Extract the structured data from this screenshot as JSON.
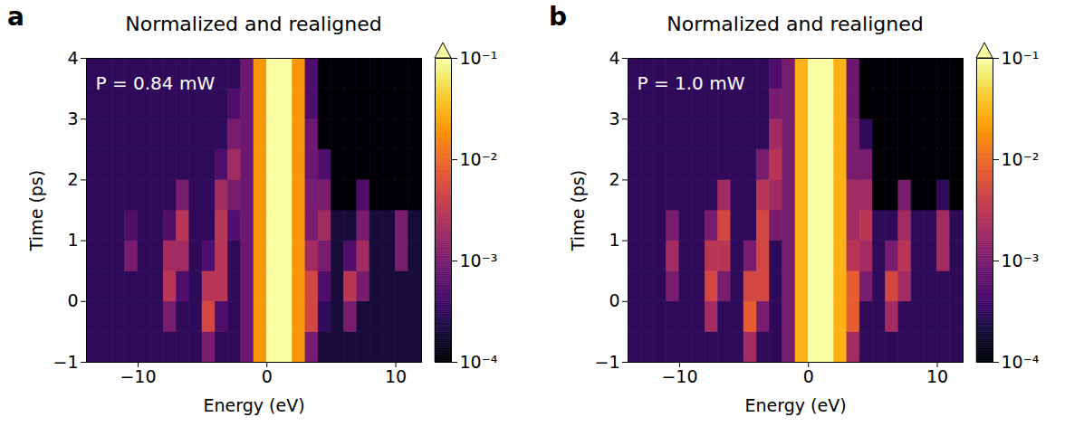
{
  "chart_data": [
    {
      "type": "heatmap",
      "panel": "a",
      "title": "Normalized and realigned",
      "annotation": "P = 0.84 mW",
      "x_label": "Energy (eV)",
      "y_label": "Time (ps)",
      "xlim": [
        -14,
        12
      ],
      "xticks": [
        {
          "value": -10,
          "label": "−10"
        },
        0,
        10
      ],
      "ylim": [
        -1,
        4
      ],
      "yticks": [
        {
          "value": -1,
          "label": "−1"
        },
        0,
        1,
        2,
        3,
        4
      ],
      "energy_bins": [
        -14,
        -13,
        -12,
        -11,
        -10,
        -9,
        -8,
        -7,
        -6,
        -5,
        -4,
        -3,
        -2,
        -1,
        0,
        1,
        2,
        3,
        4,
        5,
        6,
        7,
        8,
        9,
        10,
        11,
        12
      ],
      "time_bins": [
        -1,
        -0.5,
        0,
        0.5,
        1,
        1.5,
        2,
        2.5,
        3,
        3.5,
        4
      ],
      "cells": [
        [
          0.0003,
          0.0003,
          0.0003,
          0.0003,
          0.0003,
          0.0003,
          0.0003,
          0.0003,
          0.0003,
          0.001,
          0.0003,
          0.0003,
          0.0008,
          0.02,
          0.1,
          0.1,
          0.02,
          0.001,
          0.0002,
          0.0002,
          0.0002,
          0.0002,
          0.0002,
          0.0002,
          0.0002,
          0.0002
        ],
        [
          0.0003,
          0.0003,
          0.0003,
          0.0003,
          0.0003,
          0.0003,
          0.001,
          0.0003,
          0.0003,
          0.005,
          0.0005,
          0.0003,
          0.0008,
          0.02,
          0.1,
          0.1,
          0.02,
          0.005,
          0.0003,
          0.0002,
          0.001,
          0.0002,
          0.0002,
          0.0002,
          0.0002,
          0.0002
        ],
        [
          0.0003,
          0.0003,
          0.0003,
          0.0003,
          0.0003,
          0.0003,
          0.003,
          0.0005,
          0.0003,
          0.003,
          0.003,
          0.0003,
          0.0008,
          0.02,
          0.1,
          0.1,
          0.02,
          0.005,
          0.0005,
          0.0002,
          0.003,
          0.001,
          0.0002,
          0.0002,
          0.0002,
          0.0002
        ],
        [
          0.0003,
          0.0003,
          0.0003,
          0.001,
          0.0003,
          0.0003,
          0.002,
          0.002,
          0.0003,
          0.0005,
          0.003,
          0.0003,
          0.0008,
          0.02,
          0.1,
          0.1,
          0.02,
          0.002,
          0.001,
          0.0002,
          0.0005,
          0.002,
          0.0002,
          0.0002,
          0.001,
          0.0002
        ],
        [
          0.0003,
          0.0003,
          0.0003,
          0.0005,
          0.0003,
          0.0003,
          0.0005,
          0.003,
          0.0003,
          0.0003,
          0.003,
          0.0005,
          0.0008,
          0.02,
          0.1,
          0.1,
          0.02,
          0.001,
          0.002,
          0.0002,
          0.0002,
          0.001,
          0.0002,
          0.0002,
          0.001,
          0.0002
        ],
        [
          0.0003,
          0.0003,
          0.0003,
          0.0003,
          0.0003,
          0.0003,
          0.0003,
          0.001,
          0.0003,
          0.0003,
          0.002,
          0.001,
          0.0008,
          0.02,
          0.1,
          0.1,
          0.02,
          0.001,
          0.001,
          0.0001,
          0.0001,
          0.0005,
          0.0001,
          0.0001,
          0.0001,
          0.0001
        ],
        [
          0.0003,
          0.0003,
          0.0003,
          0.0003,
          0.0003,
          0.0003,
          0.0003,
          0.0003,
          0.0003,
          0.0003,
          0.0005,
          0.002,
          0.0008,
          0.02,
          0.1,
          0.1,
          0.02,
          0.0008,
          0.0005,
          0.0001,
          0.0001,
          0.0001,
          0.0001,
          0.0001,
          0.0001,
          0.0001
        ],
        [
          0.0003,
          0.0003,
          0.0003,
          0.0003,
          0.0003,
          0.0003,
          0.0003,
          0.0003,
          0.0003,
          0.0003,
          0.0003,
          0.001,
          0.0008,
          0.02,
          0.1,
          0.1,
          0.02,
          0.0008,
          0.0001,
          0.0001,
          0.0001,
          0.0001,
          0.0001,
          0.0001,
          0.0001,
          0.0001
        ],
        [
          0.0003,
          0.0003,
          0.0003,
          0.0003,
          0.0003,
          0.0003,
          0.0003,
          0.0003,
          0.0003,
          0.0003,
          0.0003,
          0.0005,
          0.0008,
          0.02,
          0.1,
          0.1,
          0.02,
          0.0005,
          0.0001,
          0.0001,
          0.0001,
          0.0001,
          0.0001,
          0.0001,
          0.0001,
          0.0001
        ],
        [
          0.0003,
          0.0003,
          0.0003,
          0.0003,
          0.0003,
          0.0003,
          0.0003,
          0.0003,
          0.0003,
          0.0003,
          0.0003,
          0.0003,
          0.0008,
          0.02,
          0.1,
          0.1,
          0.02,
          0.0005,
          0.0001,
          0.0001,
          0.0001,
          0.0001,
          0.0001,
          0.0001,
          0.0001,
          0.0001
        ]
      ],
      "colorbar": {
        "range": [
          0.0001,
          0.1
        ],
        "log": true,
        "ticks": [
          {
            "value": 0.0001,
            "label": "10⁻⁴"
          },
          {
            "value": 0.001,
            "label": "10⁻³"
          },
          {
            "value": 0.01,
            "label": "10⁻²"
          },
          {
            "value": 0.1,
            "label": "10⁻¹"
          }
        ]
      }
    },
    {
      "type": "heatmap",
      "panel": "b",
      "title": "Normalized and realigned",
      "annotation": "P = 1.0 mW",
      "x_label": "Energy (eV)",
      "y_label": "Time (ps)",
      "xlim": [
        -14,
        12
      ],
      "xticks": [
        {
          "value": -10,
          "label": "−10"
        },
        0,
        10
      ],
      "ylim": [
        -1,
        4
      ],
      "yticks": [
        {
          "value": -1,
          "label": "−1"
        },
        0,
        1,
        2,
        3,
        4
      ],
      "energy_bins": [
        -14,
        -13,
        -12,
        -11,
        -10,
        -9,
        -8,
        -7,
        -6,
        -5,
        -4,
        -3,
        -2,
        -1,
        0,
        1,
        2,
        3,
        4,
        5,
        6,
        7,
        8,
        9,
        10,
        11,
        12
      ],
      "time_bins": [
        -1,
        -0.5,
        0,
        0.5,
        1,
        1.5,
        2,
        2.5,
        3,
        3.5,
        4
      ],
      "cells": [
        [
          0.0003,
          0.0003,
          0.0003,
          0.0003,
          0.0003,
          0.0003,
          0.0003,
          0.0003,
          0.0003,
          0.002,
          0.0003,
          0.0003,
          0.001,
          0.03,
          0.1,
          0.1,
          0.03,
          0.002,
          0.0003,
          0.0003,
          0.0003,
          0.0003,
          0.0003,
          0.0003,
          0.0003,
          0.0003
        ],
        [
          0.0003,
          0.0003,
          0.0003,
          0.0003,
          0.0003,
          0.0003,
          0.002,
          0.0003,
          0.0003,
          0.008,
          0.001,
          0.0003,
          0.001,
          0.03,
          0.1,
          0.1,
          0.03,
          0.008,
          0.0003,
          0.0003,
          0.002,
          0.0003,
          0.0003,
          0.0003,
          0.0003,
          0.0003
        ],
        [
          0.0003,
          0.0003,
          0.0003,
          0.001,
          0.0003,
          0.0003,
          0.005,
          0.001,
          0.0003,
          0.005,
          0.005,
          0.0003,
          0.001,
          0.03,
          0.1,
          0.1,
          0.03,
          0.008,
          0.001,
          0.0003,
          0.005,
          0.002,
          0.0003,
          0.0003,
          0.0003,
          0.0003
        ],
        [
          0.0003,
          0.0003,
          0.0003,
          0.002,
          0.0003,
          0.0003,
          0.003,
          0.003,
          0.0003,
          0.001,
          0.005,
          0.0003,
          0.001,
          0.03,
          0.1,
          0.1,
          0.03,
          0.003,
          0.002,
          0.0003,
          0.001,
          0.003,
          0.0003,
          0.0003,
          0.002,
          0.0003
        ],
        [
          0.0003,
          0.0003,
          0.0003,
          0.001,
          0.0003,
          0.0003,
          0.001,
          0.005,
          0.0003,
          0.0003,
          0.005,
          0.001,
          0.001,
          0.03,
          0.1,
          0.1,
          0.03,
          0.002,
          0.003,
          0.0003,
          0.0003,
          0.002,
          0.0003,
          0.0003,
          0.002,
          0.0003
        ],
        [
          0.0003,
          0.0003,
          0.0003,
          0.0003,
          0.0003,
          0.0003,
          0.0003,
          0.002,
          0.0003,
          0.0003,
          0.003,
          0.002,
          0.001,
          0.03,
          0.1,
          0.1,
          0.03,
          0.002,
          0.002,
          0.0001,
          0.0001,
          0.001,
          0.0001,
          0.0001,
          0.0003,
          0.0001
        ],
        [
          0.0003,
          0.0003,
          0.0003,
          0.0003,
          0.0003,
          0.0003,
          0.0003,
          0.0003,
          0.0003,
          0.0003,
          0.001,
          0.003,
          0.001,
          0.03,
          0.1,
          0.1,
          0.03,
          0.001,
          0.001,
          0.0001,
          0.0001,
          0.0001,
          0.0001,
          0.0001,
          0.0001,
          0.0001
        ],
        [
          0.0003,
          0.0003,
          0.0003,
          0.0003,
          0.0003,
          0.0003,
          0.0003,
          0.0003,
          0.0003,
          0.0003,
          0.0003,
          0.002,
          0.001,
          0.03,
          0.1,
          0.1,
          0.03,
          0.001,
          0.0003,
          0.0001,
          0.0001,
          0.0001,
          0.0001,
          0.0001,
          0.0001,
          0.0001
        ],
        [
          0.0003,
          0.0003,
          0.0003,
          0.0003,
          0.0003,
          0.0003,
          0.0003,
          0.0003,
          0.0003,
          0.0003,
          0.0003,
          0.001,
          0.001,
          0.03,
          0.1,
          0.1,
          0.03,
          0.0008,
          0.0001,
          0.0001,
          0.0001,
          0.0001,
          0.0001,
          0.0001,
          0.0001,
          0.0001
        ],
        [
          0.0003,
          0.0003,
          0.0003,
          0.0003,
          0.0003,
          0.0003,
          0.0003,
          0.0003,
          0.0003,
          0.0003,
          0.0003,
          0.0005,
          0.001,
          0.03,
          0.1,
          0.1,
          0.03,
          0.0008,
          0.0001,
          0.0001,
          0.0001,
          0.0001,
          0.0001,
          0.0001,
          0.0001,
          0.0001
        ]
      ],
      "colorbar": {
        "range": [
          0.0001,
          0.1
        ],
        "log": true,
        "ticks": [
          {
            "value": 0.0001,
            "label": "10⁻⁴"
          },
          {
            "value": 0.001,
            "label": "10⁻³"
          },
          {
            "value": 0.01,
            "label": "10⁻²"
          },
          {
            "value": 0.1,
            "label": "10⁻¹"
          }
        ]
      }
    }
  ]
}
